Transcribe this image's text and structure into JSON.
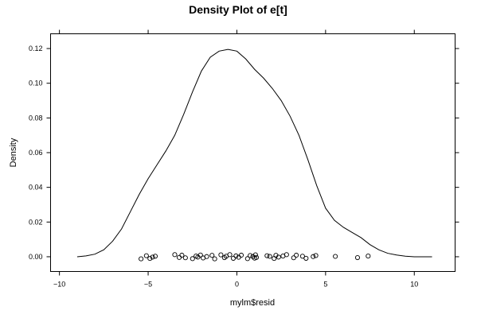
{
  "chart_data": {
    "type": "density",
    "title": "Density Plot of e[t]",
    "xlabel": "mylm$resid",
    "ylabel": "Density",
    "xlim": [
      -10.5,
      12.3
    ],
    "ylim": [
      -0.0085,
      0.1285
    ],
    "x_ticks": [
      -10,
      -5,
      0,
      5,
      10
    ],
    "x_tick_labels": [
      "−10",
      "−5",
      "0",
      "5",
      "10"
    ],
    "y_ticks": [
      0.0,
      0.02,
      0.04,
      0.06,
      0.08,
      0.1,
      0.12
    ],
    "y_tick_labels": [
      "0.00",
      "0.02",
      "0.04",
      "0.06",
      "0.08",
      "0.10",
      "0.12"
    ],
    "grid": false,
    "line_color": "#000000",
    "density_curve": {
      "x": [
        -9.0,
        -8.5,
        -8.0,
        -7.5,
        -7.0,
        -6.5,
        -6.0,
        -5.5,
        -5.0,
        -4.5,
        -4.0,
        -3.5,
        -3.0,
        -2.5,
        -2.0,
        -1.5,
        -1.0,
        -0.5,
        0.0,
        0.5,
        1.0,
        1.5,
        2.0,
        2.5,
        3.0,
        3.5,
        4.0,
        4.5,
        5.0,
        5.5,
        6.0,
        6.5,
        7.0,
        7.5,
        8.0,
        8.5,
        9.0,
        9.5,
        10.0,
        10.5,
        11.0
      ],
      "y": [
        0.0,
        0.0005,
        0.0015,
        0.004,
        0.009,
        0.016,
        0.026,
        0.036,
        0.045,
        0.053,
        0.061,
        0.07,
        0.082,
        0.095,
        0.107,
        0.115,
        0.1185,
        0.1195,
        0.1185,
        0.114,
        0.108,
        0.103,
        0.097,
        0.09,
        0.081,
        0.07,
        0.056,
        0.041,
        0.028,
        0.021,
        0.017,
        0.014,
        0.011,
        0.007,
        0.004,
        0.002,
        0.001,
        0.0003,
        0.0,
        0.0,
        0.0
      ]
    },
    "rug_points": {
      "x": [
        -5.4,
        -5.1,
        -4.9,
        -4.75,
        -4.6,
        -3.5,
        -3.25,
        -3.1,
        -2.9,
        -2.5,
        -2.3,
        -2.2,
        -2.05,
        -1.9,
        -1.7,
        -1.4,
        -1.25,
        -0.9,
        -0.7,
        -0.6,
        -0.4,
        -0.2,
        -0.05,
        0.1,
        0.25,
        0.6,
        0.75,
        0.9,
        1.0,
        1.05,
        1.1,
        1.7,
        1.85,
        2.1,
        2.2,
        2.35,
        2.6,
        2.8,
        3.2,
        3.35,
        3.7,
        3.9,
        4.3,
        4.45,
        5.55,
        6.8,
        7.4
      ],
      "y": [
        -0.0012,
        0.0006,
        -0.001,
        -0.0002,
        0.0003,
        0.0012,
        -0.0004,
        0.0009,
        -0.0006,
        -0.0011,
        0.0004,
        -0.0002,
        0.001,
        -0.0007,
        0.0001,
        0.0008,
        -0.0012,
        0.0011,
        -0.0005,
        0.0003,
        0.0012,
        -0.0009,
        0.0005,
        -0.0003,
        0.0009,
        -0.0011,
        0.0007,
        0.0001,
        -0.0008,
        0.0011,
        -0.0004,
        0.0006,
        0.0002,
        -0.001,
        0.0008,
        -0.0002,
        0.0004,
        0.0012,
        -0.0006,
        0.0009,
        0.0003,
        -0.0009,
        0.0001,
        0.0007,
        0.0002,
        -0.0005,
        0.0004
      ]
    }
  }
}
